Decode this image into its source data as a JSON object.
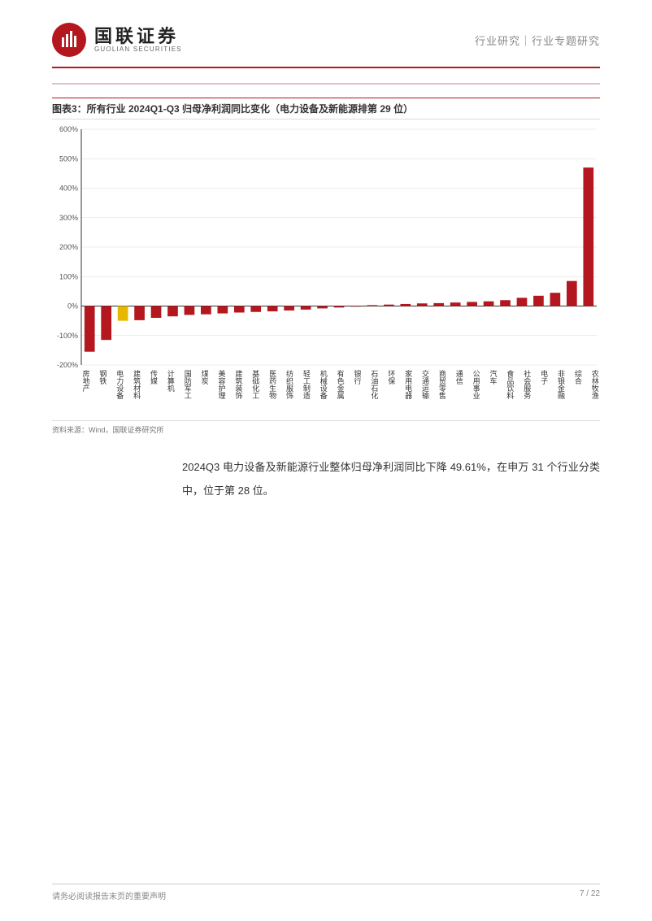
{
  "header": {
    "logo_cn": "国联证券",
    "logo_en": "GUOLIAN SECURITIES",
    "right_text": "行业研究｜行业专题研究"
  },
  "chart": {
    "title": "图表3：所有行业 2024Q1-Q3 归母净利润同比变化（电力设备及新能源排第 29 位）",
    "type": "bar",
    "ylim": [
      -200,
      600
    ],
    "ytick_step": 100,
    "ytick_labels": [
      "-200%",
      "-100%",
      "0%",
      "100%",
      "200%",
      "300%",
      "400%",
      "500%",
      "600%"
    ],
    "axis_color": "#333333",
    "grid_color": "#d9d9d9",
    "background_color": "#ffffff",
    "bar_default_color": "#b4171e",
    "bar_highlight_color": "#e6b800",
    "highlight_index": 2,
    "label_fontsize": 9,
    "tick_fontsize": 9,
    "categories": [
      "房地产",
      "钢铁",
      "电力设备",
      "建筑材料",
      "传媒",
      "计算机",
      "国防军工",
      "煤炭",
      "美容护理",
      "建筑装饰",
      "基础化工",
      "医药生物",
      "纺织服饰",
      "轻工制造",
      "机械设备",
      "有色金属",
      "银行",
      "石油石化",
      "环保",
      "家用电器",
      "交通运输",
      "商贸零售",
      "通信",
      "公用事业",
      "汽车",
      "食品饮料",
      "社会服务",
      "电子",
      "非银金融",
      "综合",
      "农林牧渔"
    ],
    "values": [
      -155,
      -115,
      -50,
      -48,
      -40,
      -35,
      -30,
      -28,
      -25,
      -22,
      -20,
      -18,
      -15,
      -12,
      -8,
      -5,
      -2,
      3,
      5,
      7,
      9,
      10,
      12,
      14,
      16,
      20,
      28,
      35,
      45,
      85,
      470
    ]
  },
  "source_text": "资料来源：Wind，国联证券研究所",
  "body_paragraph": "2024Q3 电力设备及新能源行业整体归母净利润同比下降 49.61%，在申万 31 个行业分类中，位于第 28 位。",
  "footer": {
    "left": "请务必阅读报告末页的重要声明",
    "page_current": "7",
    "page_sep": " / ",
    "page_total": "22"
  }
}
